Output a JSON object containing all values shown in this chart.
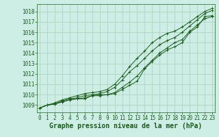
{
  "title": "Graphe pression niveau de la mer (hPa)",
  "x_labels": [
    "0",
    "1",
    "2",
    "3",
    "4",
    "5",
    "6",
    "7",
    "8",
    "9",
    "10",
    "11",
    "12",
    "13",
    "14",
    "15",
    "16",
    "17",
    "18",
    "19",
    "20",
    "21",
    "22",
    "23"
  ],
  "ylim": [
    1008.3,
    1018.7
  ],
  "xlim": [
    -0.3,
    23.3
  ],
  "yticks": [
    1009,
    1010,
    1011,
    1012,
    1013,
    1014,
    1015,
    1016,
    1017,
    1018
  ],
  "background_color": "#cceee4",
  "grid_color": "#aaccbb",
  "line_color": "#1a5c1a",
  "series": [
    [
      1008.7,
      1009.0,
      1009.1,
      1009.3,
      1009.5,
      1009.6,
      1009.6,
      1009.9,
      1009.9,
      1010.0,
      1010.1,
      1010.5,
      1010.9,
      1011.3,
      1012.5,
      1013.2,
      1013.8,
      1014.3,
      1014.6,
      1015.0,
      1016.0,
      1016.5,
      1017.5,
      1017.6
    ],
    [
      1008.7,
      1009.0,
      1009.1,
      1009.3,
      1009.5,
      1009.6,
      1009.7,
      1009.9,
      1010.0,
      1010.0,
      1010.2,
      1010.7,
      1011.2,
      1011.8,
      1012.6,
      1013.3,
      1014.0,
      1014.5,
      1015.0,
      1015.3,
      1016.1,
      1016.7,
      1017.3,
      1017.5
    ],
    [
      1008.7,
      1009.0,
      1009.1,
      1009.4,
      1009.6,
      1009.7,
      1009.9,
      1010.0,
      1010.1,
      1010.3,
      1010.7,
      1011.4,
      1012.2,
      1012.8,
      1013.5,
      1014.2,
      1014.8,
      1015.2,
      1015.5,
      1016.0,
      1016.6,
      1017.2,
      1017.8,
      1018.1
    ],
    [
      1008.7,
      1009.0,
      1009.2,
      1009.5,
      1009.7,
      1009.9,
      1010.1,
      1010.2,
      1010.3,
      1010.5,
      1011.0,
      1011.8,
      1012.7,
      1013.5,
      1014.2,
      1015.0,
      1015.5,
      1015.9,
      1016.1,
      1016.5,
      1017.0,
      1017.5,
      1018.0,
      1018.3
    ]
  ],
  "marker": "+",
  "marker_size": 3,
  "line_width": 0.7,
  "title_fontsize": 7,
  "tick_fontsize": 5.5
}
